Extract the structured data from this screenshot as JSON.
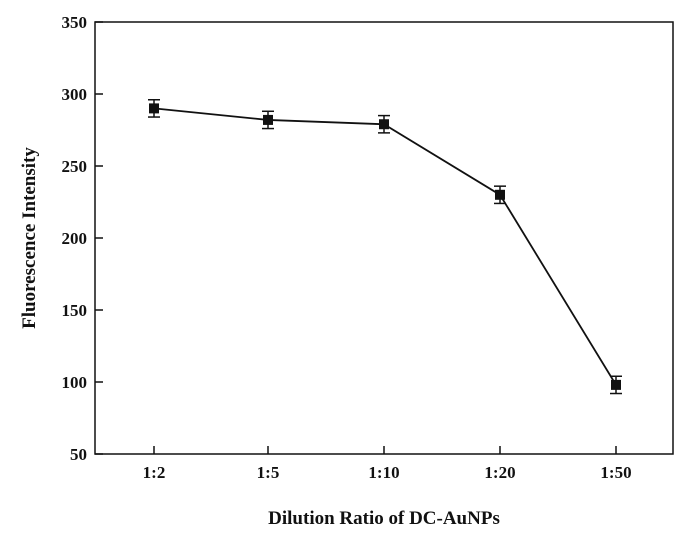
{
  "chart_data": {
    "type": "line",
    "title": "",
    "xlabel": "Dilution Ratio of DC-AuNPs",
    "ylabel": "Fluorescence Intensity",
    "categories": [
      "1:2",
      "1:5",
      "1:10",
      "1:20",
      "1:50"
    ],
    "series": [
      {
        "values": [
          290,
          282,
          279,
          230,
          98
        ],
        "errors": [
          6,
          6,
          6,
          6,
          6
        ]
      }
    ],
    "ylim": [
      50,
      350
    ],
    "yticks": [
      50,
      100,
      150,
      200,
      250,
      300,
      350
    ],
    "grid": false,
    "legend": "none",
    "marker": "square",
    "colors": {
      "line": "#111111",
      "axis": "#111111",
      "background": "#ffffff"
    }
  }
}
